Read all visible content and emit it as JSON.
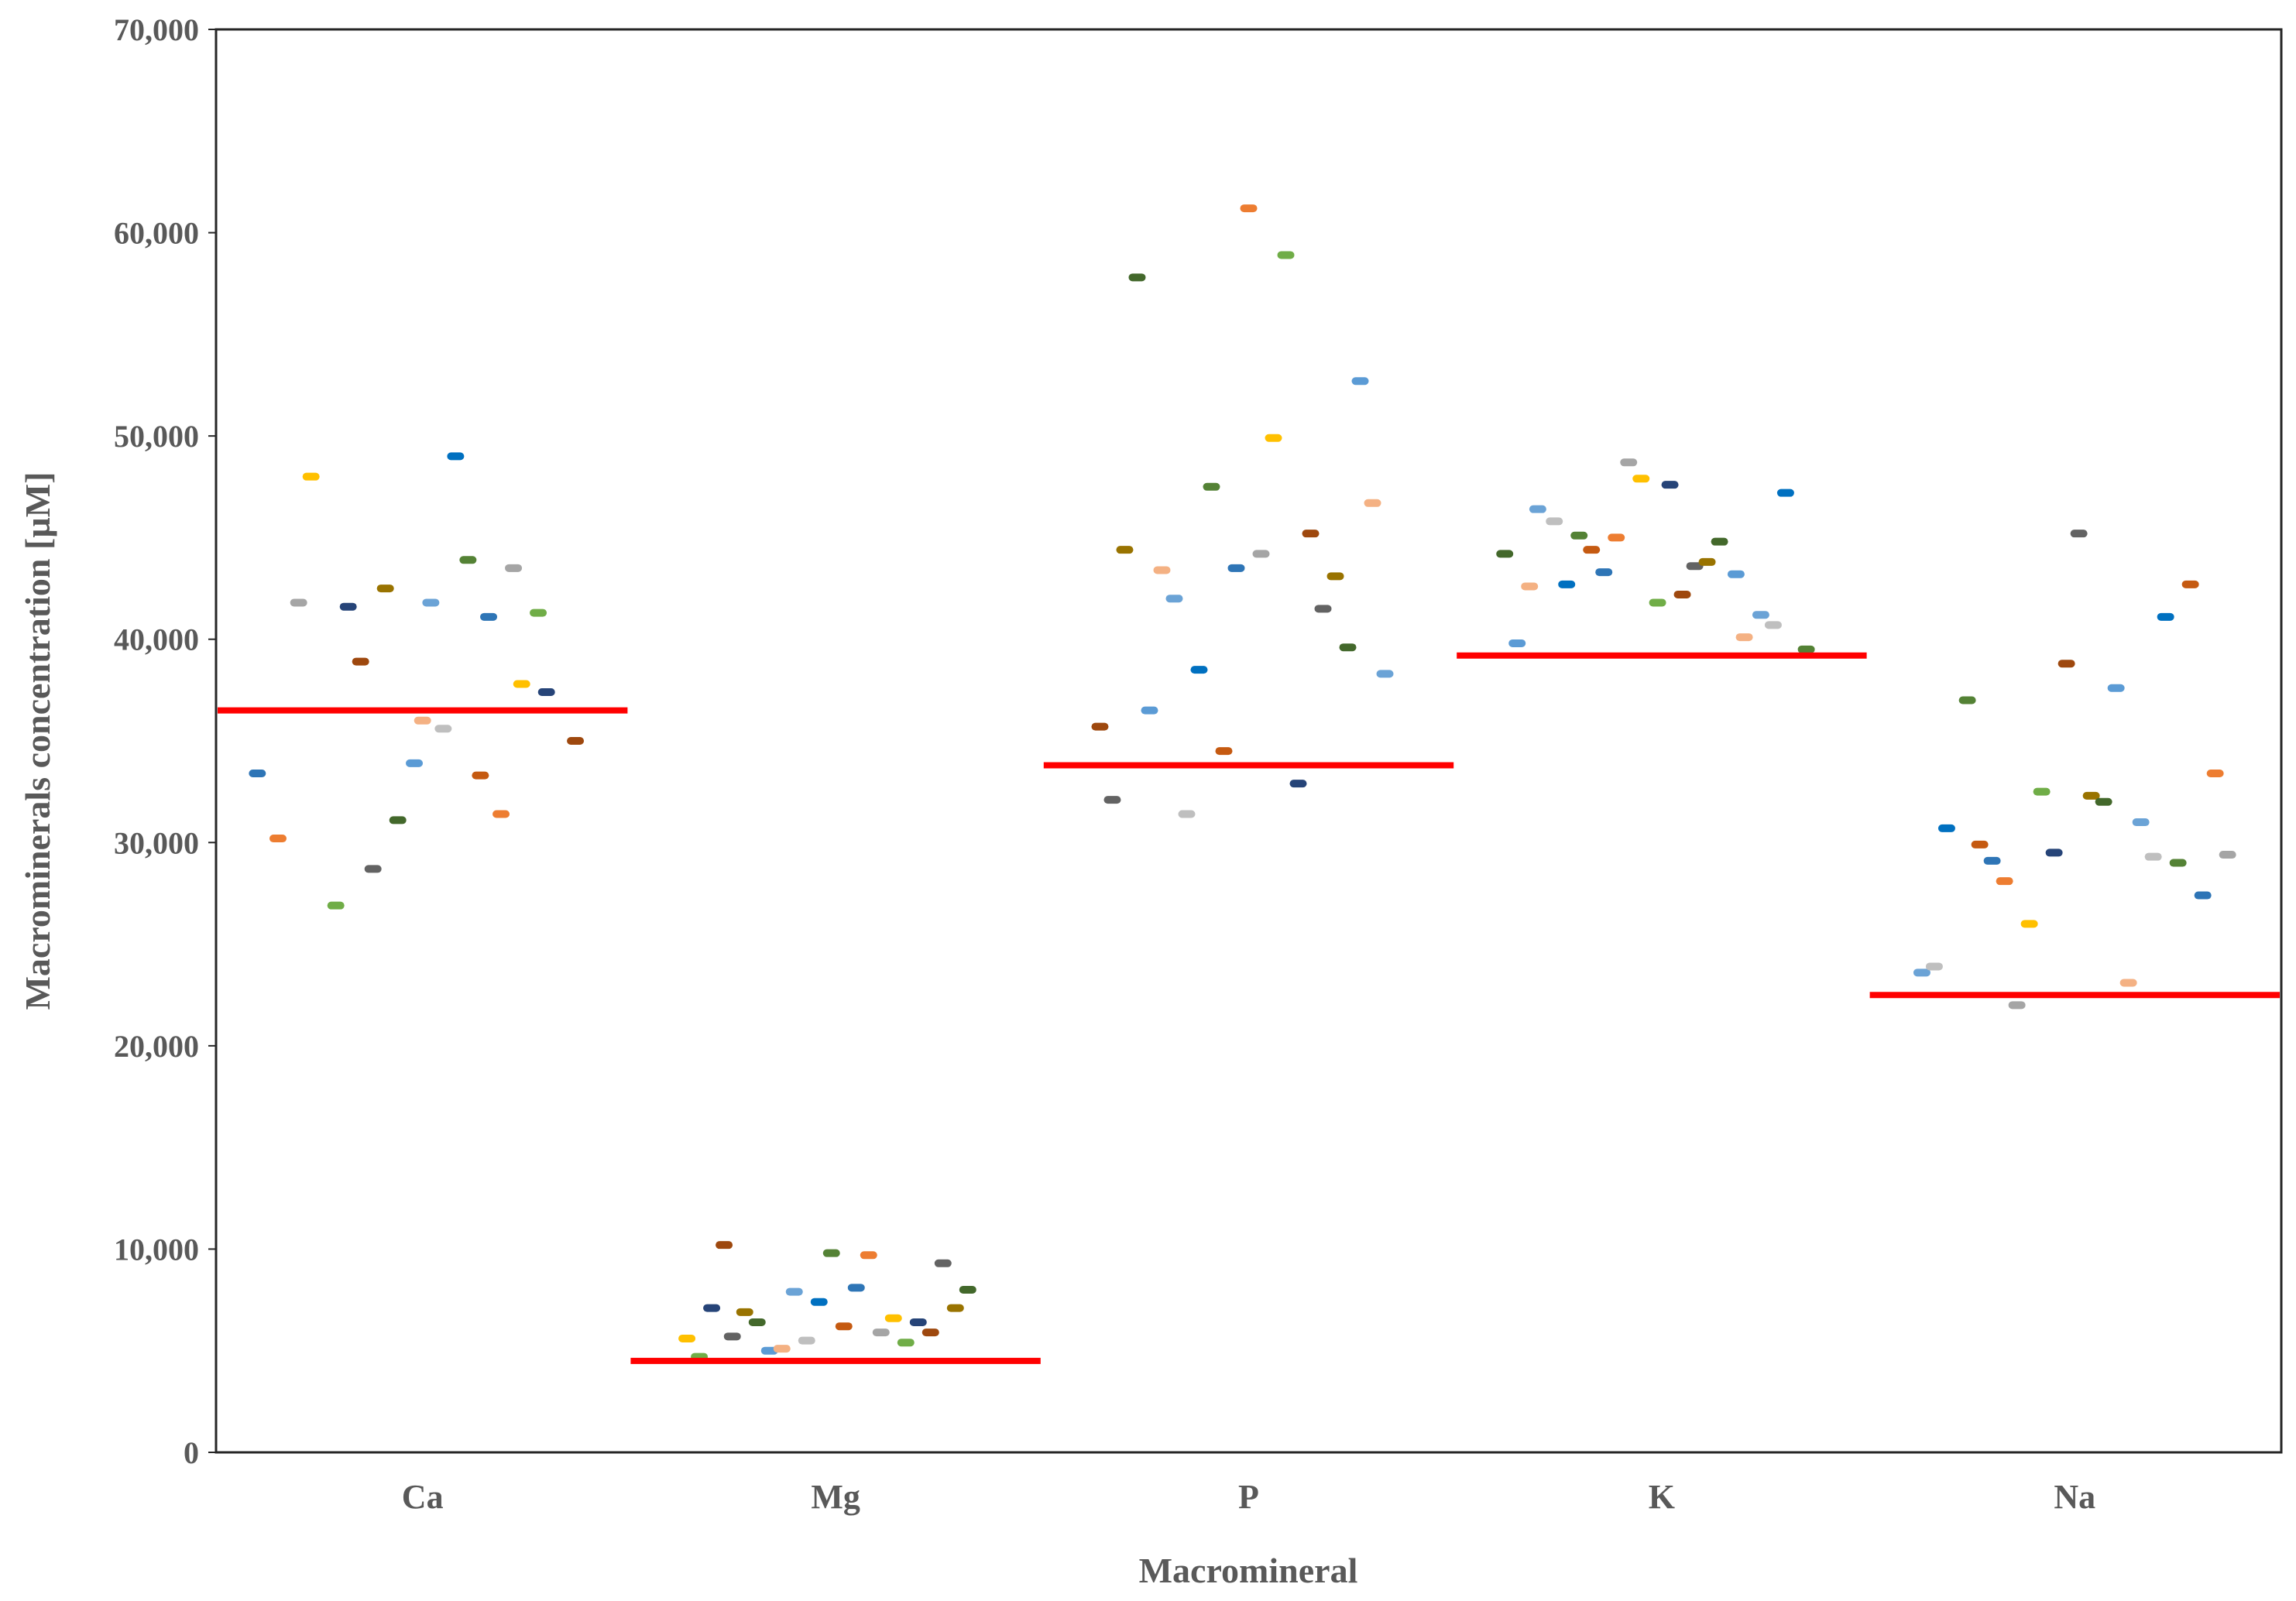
{
  "chart_data": {
    "type": "scatter",
    "title": "",
    "xlabel": "Macromineral",
    "ylabel": "Macrominerals concentration [µM]",
    "ylim": [
      0,
      70000
    ],
    "yticks": [
      0,
      10000,
      20000,
      30000,
      40000,
      50000,
      60000,
      70000
    ],
    "ytick_labels": [
      "0",
      "10,000",
      "20,000",
      "30,000",
      "40,000",
      "50,000",
      "60,000",
      "70,000"
    ],
    "categories": [
      "Ca",
      "Mg",
      "P",
      "K",
      "Na"
    ],
    "grid": false,
    "legend": "none",
    "reference_line_color": "#ff0000",
    "reference_lines": [
      36500,
      4500,
      33800,
      39200,
      22500
    ],
    "point_colors": [
      "#2e75b6",
      "#ed7d31",
      "#a5a5a5",
      "#ffc000",
      "#70ad47",
      "#264478",
      "#9e480e",
      "#636363",
      "#997300",
      "#43682b",
      "#5b9bd5",
      "#f4b183",
      "#6ba3d6",
      "#bfbfbf",
      "#0070c0",
      "#548235",
      "#c55a11"
    ],
    "series": [
      {
        "category": "Ca",
        "x": [
          0.1,
          0.15,
          0.2,
          0.23,
          0.29,
          0.32,
          0.35,
          0.38,
          0.41,
          0.44,
          0.48,
          0.5,
          0.52,
          0.55,
          0.58,
          0.61,
          0.64,
          0.66,
          0.69,
          0.72,
          0.74,
          0.78,
          0.8,
          0.87
        ],
        "y": [
          33400,
          30200,
          41800,
          48000,
          26900,
          41600,
          38900,
          28700,
          42500,
          31100,
          33900,
          36000,
          41800,
          35600,
          49000,
          43900,
          33300,
          41100,
          31400,
          43500,
          37800,
          41300,
          37400,
          35000
        ]
      },
      {
        "category": "Mg",
        "x": [
          0.14,
          0.17,
          0.2,
          0.23,
          0.25,
          0.28,
          0.31,
          0.34,
          0.37,
          0.4,
          0.43,
          0.46,
          0.49,
          0.52,
          0.55,
          0.58,
          0.61,
          0.64,
          0.67,
          0.7,
          0.73,
          0.76,
          0.79,
          0.82
        ],
        "y": [
          5600,
          4700,
          7100,
          10200,
          5700,
          6900,
          6400,
          5000,
          5100,
          7900,
          5500,
          7400,
          9800,
          6200,
          8100,
          9700,
          5900,
          6600,
          5400,
          6400,
          5900,
          9300,
          7100,
          8000
        ]
      },
      {
        "category": "P",
        "x": [
          0.14,
          0.17,
          0.2,
          0.23,
          0.26,
          0.29,
          0.32,
          0.35,
          0.38,
          0.41,
          0.44,
          0.47,
          0.5,
          0.53,
          0.56,
          0.59,
          0.62,
          0.65,
          0.68,
          0.71,
          0.74,
          0.77,
          0.8,
          0.83
        ],
        "y": [
          35700,
          32100,
          44400,
          57800,
          36500,
          43400,
          42000,
          31400,
          38500,
          47500,
          34500,
          43500,
          61200,
          44200,
          49900,
          58900,
          32900,
          45200,
          41500,
          43100,
          39600,
          52700,
          46700,
          38300
        ]
      },
      {
        "category": "K",
        "x": [
          0.12,
          0.15,
          0.18,
          0.2,
          0.24,
          0.27,
          0.3,
          0.33,
          0.36,
          0.39,
          0.42,
          0.45,
          0.49,
          0.52,
          0.55,
          0.58,
          0.61,
          0.64,
          0.68,
          0.7,
          0.74,
          0.77,
          0.8,
          0.85
        ],
        "y": [
          44200,
          39800,
          42600,
          46400,
          45800,
          42700,
          45100,
          44400,
          43300,
          45000,
          48700,
          47900,
          41800,
          47600,
          42200,
          43600,
          43800,
          44800,
          43200,
          40100,
          41200,
          40700,
          47200,
          39500
        ]
      },
      {
        "category": "Na",
        "x": [
          0.13,
          0.16,
          0.19,
          0.24,
          0.27,
          0.3,
          0.33,
          0.36,
          0.39,
          0.42,
          0.45,
          0.48,
          0.51,
          0.54,
          0.57,
          0.6,
          0.63,
          0.66,
          0.69,
          0.72,
          0.75,
          0.78,
          0.81,
          0.84,
          0.87
        ],
        "y": [
          23600,
          23900,
          30700,
          37000,
          29900,
          29100,
          28100,
          22000,
          26000,
          32500,
          29500,
          38800,
          45200,
          32300,
          32000,
          37600,
          23100,
          31000,
          29300,
          41100,
          29000,
          42700,
          27400,
          33400,
          29400
        ]
      }
    ]
  }
}
